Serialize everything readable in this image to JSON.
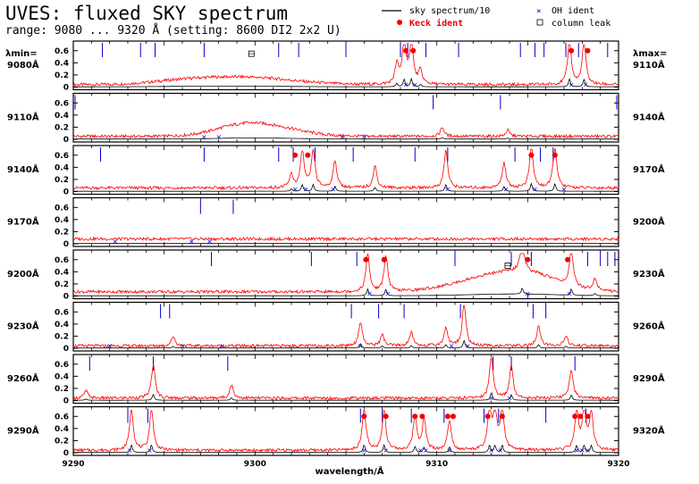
{
  "header": {
    "title": "UVES: fluxed SKY spectrum",
    "subtitle": "range: 9080 ... 9320 Å (setting: 8600 DI2 2x2 U)",
    "col_left_label": "λmin=",
    "col_right_label": "λmax="
  },
  "legend": {
    "sky": "sky spectrum/10",
    "keck": "Keck ident",
    "oh": "OH ident",
    "leak": "column leak"
  },
  "colors": {
    "spectrum": "#ff0000",
    "sky10": "#000000",
    "oh": "#0000cc",
    "keck": "#ee0000",
    "leak": "#000000"
  },
  "chart_data": {
    "type": "line",
    "title": "UVES: fluxed SKY spectrum",
    "xlabel": "wavelength/Å",
    "panels": [
      {
        "lmin_label": "9080Å",
        "lmax_label": "9110Å",
        "xlim": [
          9080,
          9110
        ],
        "ylim": [
          0,
          0.7
        ],
        "yticks": [
          "0",
          "0.2",
          "0.4",
          "0.6"
        ],
        "continuum": 0.04,
        "bumps": [
          [
            9089.5,
            2.5,
            0.12
          ],
          [
            9086.0,
            1.8,
            0.05
          ]
        ],
        "lines": [
          [
            9098.2,
            0.7
          ],
          [
            9098.6,
            0.72
          ],
          [
            9107.3,
            0.72
          ],
          [
            9108.1,
            0.7
          ],
          [
            9097.8,
            0.32
          ],
          [
            9099.1,
            0.22
          ]
        ],
        "oh": [
          9098.3,
          9098.8,
          9107.4,
          9108.2
        ],
        "keck": [
          [
            9098.3,
            0.6
          ],
          [
            9098.7,
            0.6
          ],
          [
            9107.4,
            0.6
          ],
          [
            9108.3,
            0.6
          ]
        ],
        "leak": [
          [
            9089.8,
            0.55
          ]
        ],
        "ticks": [
          9081.6,
          9083.7,
          9084.5,
          9087.2,
          9091.3,
          9092.4,
          9095.0,
          9098.0,
          9098.4,
          9099.4,
          9101.2,
          9104.6,
          9105.4,
          9105.9,
          9107.1,
          9107.8,
          9109.4
        ]
      },
      {
        "lmin_label": "9110Å",
        "lmax_label": "9140Å",
        "xlim": [
          9110,
          9140
        ],
        "ylim": [
          0,
          0.7
        ],
        "yticks": [
          "0",
          "0.2",
          "0.4",
          "0.6"
        ],
        "continuum": 0.05,
        "bumps": [
          [
            9119.3,
            1.5,
            0.18
          ],
          [
            9121.5,
            1.5,
            0.1
          ]
        ],
        "lines": [
          [
            9130.3,
            0.15
          ],
          [
            9133.9,
            0.1
          ]
        ],
        "oh": [
          9117.2,
          9118.0,
          9124.8,
          9126.0
        ],
        "keck": [],
        "leak": [],
        "ticks": [
          9110.1,
          9129.8,
          9133.5,
          9139.9
        ]
      },
      {
        "lmin_label": "9140Å",
        "lmax_label": "9170Å",
        "xlim": [
          9140,
          9170
        ],
        "ylim": [
          0,
          0.7
        ],
        "yticks": [
          "0",
          "0.2",
          "0.4",
          "0.6"
        ],
        "continuum": 0.06,
        "bumps": [],
        "lines": [
          [
            9152.0,
            0.22
          ],
          [
            9152.6,
            0.6
          ],
          [
            9153.2,
            0.62
          ],
          [
            9154.4,
            0.45
          ],
          [
            9156.6,
            0.36
          ],
          [
            9160.5,
            0.62
          ],
          [
            9163.7,
            0.42
          ],
          [
            9165.2,
            0.7
          ],
          [
            9166.5,
            0.7
          ]
        ],
        "oh": [
          9152.2,
          9152.8,
          9154.3,
          9160.6,
          9163.8,
          9165.4,
          9167.0
        ],
        "keck": [
          [
            9152.2,
            0.6
          ],
          [
            9152.9,
            0.6
          ],
          [
            9165.2,
            0.6
          ],
          [
            9166.5,
            0.6
          ]
        ],
        "leak": [],
        "ticks": [
          9141.5,
          9147.2,
          9151.3,
          9152.1,
          9153.3,
          9155.4,
          9158.8,
          9160.6,
          9164.3,
          9165.7,
          9166.4
        ]
      },
      {
        "lmin_label": "9170Å",
        "lmax_label": "9200Å",
        "xlim": [
          9170,
          9200
        ],
        "ylim": [
          0,
          0.7
        ],
        "yticks": [
          "0",
          "0.2",
          "0.4",
          "0.6"
        ],
        "continuum": 0.08,
        "bumps": [],
        "lines": [],
        "oh": [
          9172.3,
          9176.5,
          9177.5
        ],
        "keck": [],
        "leak": [],
        "ticks": [
          9177.0,
          9178.8
        ]
      },
      {
        "lmin_label": "9200Å",
        "lmax_label": "9230Å",
        "xlim": [
          9200,
          9230
        ],
        "ylim": [
          0,
          0.7
        ],
        "yticks": [
          "0",
          "0.2",
          "0.4",
          "0.6"
        ],
        "continuum": 0.07,
        "bumps": [
          [
            9223.5,
            2.2,
            0.28
          ],
          [
            9225.5,
            1.5,
            0.12
          ]
        ],
        "lines": [
          [
            9216.2,
            0.62
          ],
          [
            9217.2,
            0.6
          ],
          [
            9224.7,
            0.55
          ],
          [
            9227.4,
            0.58
          ],
          [
            9228.7,
            0.2
          ]
        ],
        "oh": [
          9216.3,
          9217.3,
          9225.0,
          9227.3
        ],
        "keck": [
          [
            9216.1,
            0.6
          ],
          [
            9217.1,
            0.6
          ],
          [
            9225.0,
            0.6
          ],
          [
            9227.2,
            0.6
          ]
        ],
        "leak": [
          [
            9223.9,
            0.5
          ]
        ],
        "ticks": [
          9207.6,
          9213.1,
          9215.6,
          9221.0,
          9224.1,
          9225.2,
          9228.3,
          9229.0,
          9229.4,
          9229.8
        ]
      },
      {
        "lmin_label": "9230Å",
        "lmax_label": "9260Å",
        "xlim": [
          9230,
          9260
        ],
        "ylim": [
          0,
          0.7
        ],
        "yticks": [
          "0",
          "0.2",
          "0.4",
          "0.6"
        ],
        "continuum": 0.04,
        "bumps": [],
        "lines": [
          [
            9235.5,
            0.16
          ],
          [
            9245.8,
            0.4
          ],
          [
            9247.0,
            0.18
          ],
          [
            9248.6,
            0.22
          ],
          [
            9250.5,
            0.3
          ],
          [
            9251.5,
            0.7
          ],
          [
            9255.6,
            0.32
          ],
          [
            9257.1,
            0.16
          ]
        ],
        "oh": [
          9232.0,
          9236.0,
          9238.2,
          9245.8,
          9250.8,
          9251.7
        ],
        "keck": [],
        "leak": [],
        "ticks": [
          9234.8,
          9235.3,
          9245.3,
          9246.8,
          9248.2,
          9251.3,
          9255.3,
          9256.0
        ]
      },
      {
        "lmin_label": "9260Å",
        "lmax_label": "9290Å",
        "xlim": [
          9260,
          9290
        ],
        "ylim": [
          0,
          0.7
        ],
        "yticks": [
          "0",
          "0.2",
          "0.4",
          "0.6"
        ],
        "continuum": 0.04,
        "bumps": [],
        "lines": [
          [
            9260.7,
            0.12
          ],
          [
            9264.4,
            0.55
          ],
          [
            9268.7,
            0.22
          ],
          [
            9283.0,
            0.7
          ],
          [
            9284.1,
            0.52
          ],
          [
            9287.4,
            0.48
          ]
        ],
        "oh": [
          9283.0,
          9284.0
        ],
        "keck": [],
        "leak": [],
        "ticks": [
          9260.9,
          9264.4,
          9268.5,
          9283.1,
          9284.1,
          9287.6
        ]
      },
      {
        "lmin_label": "9290Å",
        "lmax_label": "9320Å",
        "xlim": [
          9290,
          9320
        ],
        "ylim": [
          0,
          0.7
        ],
        "yticks": [
          "0",
          "0.2",
          "0.4",
          "0.6"
        ],
        "continuum": 0.04,
        "bumps": [],
        "lines": [
          [
            9293.2,
            0.7
          ],
          [
            9294.3,
            0.7
          ],
          [
            9306.0,
            0.7
          ],
          [
            9307.1,
            0.68
          ],
          [
            9308.8,
            0.56
          ],
          [
            9309.3,
            0.5
          ],
          [
            9310.7,
            0.5
          ],
          [
            9312.9,
            0.66
          ],
          [
            9313.2,
            0.64
          ],
          [
            9313.6,
            0.68
          ],
          [
            9317.7,
            0.64
          ],
          [
            9318.1,
            0.66
          ],
          [
            9318.5,
            0.64
          ]
        ],
        "oh": [
          9293.1,
          9294.2,
          9306.0,
          9307.2,
          9309.1,
          9309.4,
          9310.7,
          9313.0,
          9313.5,
          9317.7,
          9318.0,
          9318.3
        ],
        "keck": [
          [
            9306.0,
            0.6
          ],
          [
            9307.2,
            0.6
          ],
          [
            9308.8,
            0.6
          ],
          [
            9309.2,
            0.6
          ],
          [
            9310.6,
            0.6
          ],
          [
            9310.9,
            0.6
          ],
          [
            9312.8,
            0.6
          ],
          [
            9313.6,
            0.6
          ],
          [
            9317.6,
            0.6
          ],
          [
            9317.9,
            0.6
          ],
          [
            9318.3,
            0.6
          ]
        ],
        "leak": [],
        "ticks": [
          9293.0,
          9294.1,
          9305.8,
          9307.0,
          9308.6,
          9310.4,
          9312.6,
          9313.4,
          9316.0,
          9318.2
        ]
      }
    ],
    "xaxis_ticks": [
      "9290",
      "9300",
      "9310",
      "9320"
    ]
  }
}
